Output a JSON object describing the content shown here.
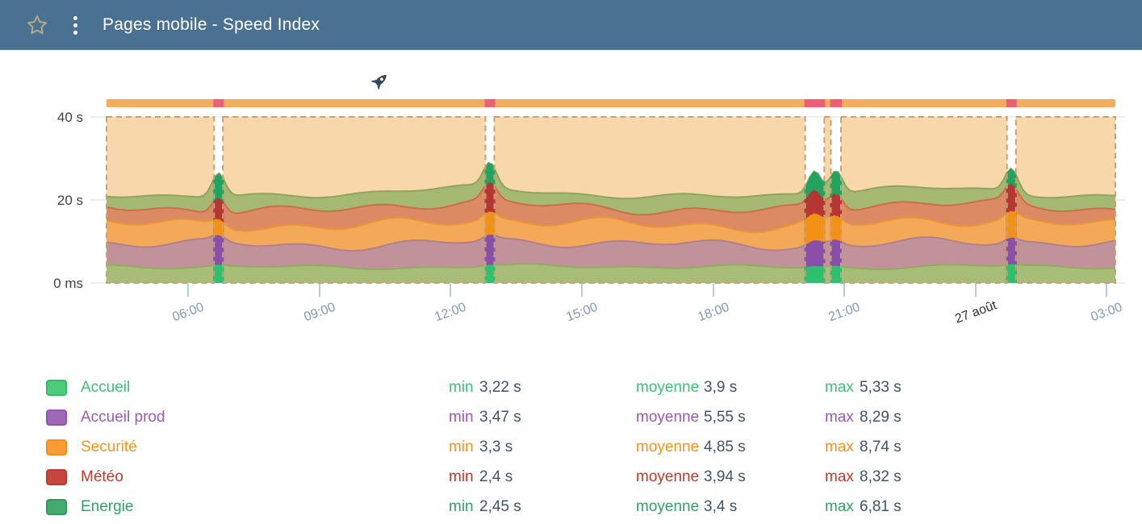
{
  "header": {
    "title": "Pages mobile - Speed Index",
    "favorite_icon": "star",
    "menu_icon": "kebab-vertical-dots"
  },
  "chart_data": {
    "type": "area",
    "subtype": "stacked-area-timeseries",
    "title": "Pages mobile - Speed Index",
    "x_ticks": [
      "06:00",
      "09:00",
      "12:00",
      "15:00",
      "18:00",
      "21:00",
      "27 août",
      "03:00"
    ],
    "x_date_tick_index": 6,
    "y_tick_labels": [
      "40 s",
      "20 s",
      "0 ms"
    ],
    "y_range_seconds": [
      0,
      40
    ],
    "grid": "horizontal",
    "legend_position": "bottom",
    "series": [
      {
        "name": "Accueil",
        "color": "#2ec06e",
        "muted_color": "#a8be78",
        "edge_color": "#92ab61",
        "min_value": 3.22,
        "avg_value": 3.9,
        "max_value": 5.33
      },
      {
        "name": "Accueil prod",
        "color": "#8a4fa8",
        "muted_color": "#c2929b",
        "edge_color": "#b2808d",
        "min_value": 3.47,
        "avg_value": 5.55,
        "max_value": 8.29
      },
      {
        "name": "Securité",
        "color": "#f39114",
        "muted_color": "#f3a957",
        "edge_color": "#ea9537",
        "min_value": 3.3,
        "avg_value": 4.85,
        "max_value": 8.74
      },
      {
        "name": "Météo",
        "color": "#b43731",
        "muted_color": "#db8a63",
        "edge_color": "#cb6f47",
        "min_value": 2.4,
        "avg_value": 3.94,
        "max_value": 8.32
      },
      {
        "name": "Energie",
        "color": "#22a35f",
        "muted_color": "#a6b973",
        "edge_color": "#8ea45c",
        "min_value": 2.45,
        "avg_value": 3.4,
        "max_value": 6.81
      }
    ],
    "band_fill": "#f8d8ab",
    "band_border": "#c3a27a",
    "timeline_bar_color": "#f6ac5e",
    "event_marker_color": "#ef5f74",
    "event_markers": [
      {
        "pos": 0.111,
        "width": 0.0088
      },
      {
        "pos": 0.38,
        "width": 0.0088
      },
      {
        "pos": 0.702,
        "width": 0.019
      },
      {
        "pos": 0.723,
        "width": 0.01
      },
      {
        "pos": 0.897,
        "width": 0.0088
      }
    ],
    "annotation_icon": {
      "name": "rocket",
      "x_fraction": 0.27,
      "color": "#31475c"
    },
    "axis_text_color": "#7e99b0",
    "axis_date_text_color": "#2f2f2f",
    "y_label_color": "#3f3f3f",
    "grid_color": "#d5dde3",
    "tick_color": "#b4cbdd"
  },
  "legend": {
    "stat_labels": {
      "min": "min",
      "moyenne": "moyenne",
      "max": "max"
    },
    "rows": [
      {
        "name": "Accueil",
        "text_color": "#3fc176",
        "swatch": "#4ecb7d",
        "swatch_border": "#2fbe66",
        "min": "3,22 s",
        "moyenne": "3,9 s",
        "max": "5,33 s"
      },
      {
        "name": "Accueil prod",
        "text_color": "#9b59b6",
        "swatch": "#a168b8",
        "swatch_border": "#9153ad",
        "min": "3,47 s",
        "moyenne": "5,55 s",
        "max": "8,29 s"
      },
      {
        "name": "Securité",
        "text_color": "#f5941f",
        "swatch": "#f89c38",
        "swatch_border": "#f78c1e",
        "min": "3,3 s",
        "moyenne": "4,85 s",
        "max": "8,74 s"
      },
      {
        "name": "Météo",
        "text_color": "#c0392b",
        "swatch": "#c4463c",
        "swatch_border": "#b83a30",
        "min": "2,4 s",
        "moyenne": "3,94 s",
        "max": "8,32 s"
      },
      {
        "name": "Energie",
        "text_color": "#33a164",
        "swatch": "#43ab6e",
        "swatch_border": "#31995c",
        "min": "2,45 s",
        "moyenne": "3,4 s",
        "max": "6,81 s"
      }
    ]
  }
}
